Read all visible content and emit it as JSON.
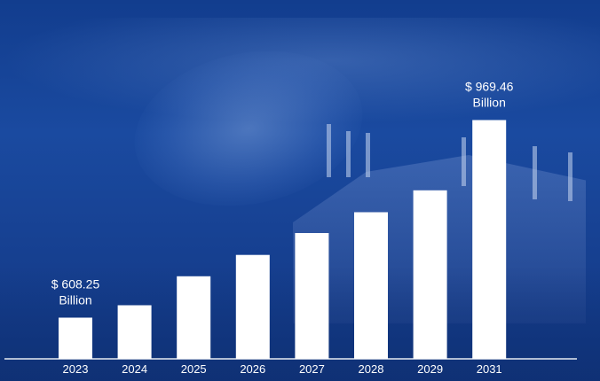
{
  "chart_data": {
    "type": "bar",
    "categories": [
      "2023",
      "2024",
      "2025",
      "2026",
      "2027",
      "2028",
      "2029",
      "2031"
    ],
    "values": [
      608.25,
      631,
      684,
      723,
      763,
      801,
      841,
      969.46
    ],
    "ylim": [
      533,
      1027
    ],
    "grid": false,
    "legend": "none",
    "bar_color": "#ffffff",
    "background_color": "#1a4aa0",
    "annotations": [
      {
        "category": "2023",
        "line1": "$ 608.25",
        "line2": "Billion"
      },
      {
        "category": "2031",
        "line1": "$ 969.46",
        "line2": "Billion"
      }
    ]
  }
}
